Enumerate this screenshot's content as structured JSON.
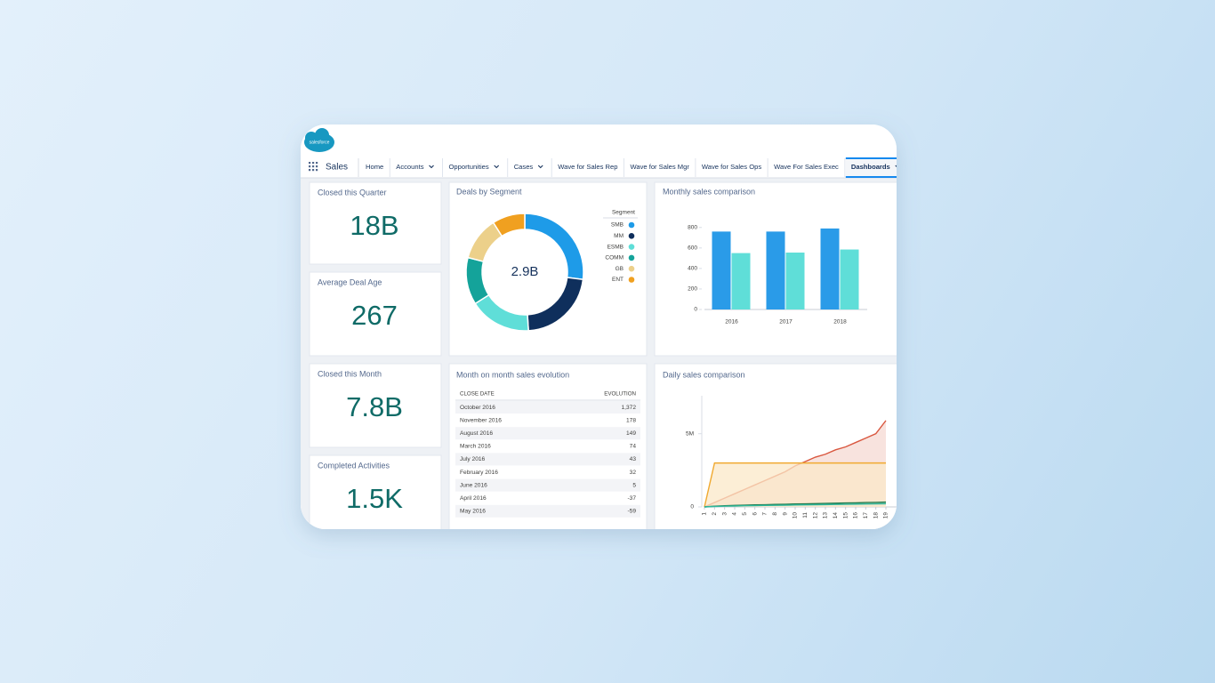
{
  "nav": {
    "logo": "salesforce",
    "app": "Sales",
    "tabs": [
      {
        "label": "Home"
      },
      {
        "label": "Accounts",
        "menu": true
      },
      {
        "label": "Opportunities",
        "menu": true
      },
      {
        "label": "Cases",
        "menu": true
      },
      {
        "label": "Wave for Sales Rep"
      },
      {
        "label": "Wave for Sales Mgr"
      },
      {
        "label": "Wave for Sales Ops"
      },
      {
        "label": "Wave For Sales Exec"
      },
      {
        "label": "Dashboards",
        "menu": true,
        "active": true
      }
    ]
  },
  "metrics": [
    {
      "label": "Closed this Quarter",
      "value": "18B"
    },
    {
      "label": "Average Deal Age",
      "value": "267"
    },
    {
      "label": "Closed this Month",
      "value": "7.8B"
    },
    {
      "label": "Completed Activities",
      "value": "1.5K"
    }
  ],
  "table": {
    "title": "Month on month sales evolution",
    "columns": [
      "CLOSE DATE",
      "EVOLUTION"
    ],
    "rows": [
      [
        "October 2016",
        "1,372"
      ],
      [
        "November 2016",
        "178"
      ],
      [
        "August 2016",
        "149"
      ],
      [
        "March 2016",
        "74"
      ],
      [
        "July 2016",
        "43"
      ],
      [
        "February 2016",
        "32"
      ],
      [
        "June 2016",
        "5"
      ],
      [
        "April 2016",
        "-37"
      ],
      [
        "May 2016",
        "-59"
      ]
    ]
  },
  "chart_data": [
    {
      "type": "donut",
      "title": "Deals by Segment",
      "center_label": "2.9B",
      "legend_title": "Segment",
      "categories": [
        "SMB",
        "MM",
        "ESMB",
        "COMM",
        "GB",
        "ENT"
      ],
      "values": [
        27,
        22,
        17,
        13,
        12,
        9
      ],
      "colors": [
        "#1e9be8",
        "#0f2f5c",
        "#5fded8",
        "#14a39a",
        "#ecd08a",
        "#f0a020"
      ]
    },
    {
      "type": "bar",
      "title": "Monthly sales comparison",
      "categories": [
        "2016",
        "2017",
        "2018"
      ],
      "series": [
        {
          "color": "#2a9be8",
          "values": [
            760,
            760,
            790
          ]
        },
        {
          "color": "#5fded8",
          "values": [
            550,
            555,
            585
          ]
        }
      ],
      "ylim": [
        0,
        850
      ],
      "yticks": [
        0,
        200,
        400,
        600,
        800
      ]
    },
    {
      "type": "area",
      "title": "Daily sales comparison",
      "x": [
        1,
        2,
        3,
        4,
        5,
        6,
        7,
        8,
        9,
        10,
        11,
        12,
        13,
        14,
        15,
        16,
        17,
        18,
        19
      ],
      "series": [
        {
          "color": "#d9573f",
          "fill_color": "#f6d9d3",
          "values": [
            0,
            0.3,
            0.6,
            0.9,
            1.2,
            1.5,
            1.8,
            2.1,
            2.4,
            2.8,
            3.1,
            3.4,
            3.6,
            3.9,
            4.1,
            4.4,
            4.7,
            5.0,
            5.9
          ]
        },
        {
          "color": "#f0a930",
          "fill_color": "#fbe8c8",
          "values": [
            0,
            3,
            3,
            3,
            3,
            3,
            3,
            3,
            3,
            3,
            3,
            3,
            3,
            3,
            3,
            3,
            3,
            3,
            3
          ]
        },
        {
          "color": "#1e7a4c",
          "values": [
            0,
            0.05,
            0.08,
            0.1,
            0.12,
            0.14,
            0.15,
            0.17,
            0.18,
            0.2,
            0.21,
            0.22,
            0.24,
            0.25,
            0.27,
            0.28,
            0.3,
            0.31,
            0.33
          ]
        },
        {
          "color": "#2fb79c",
          "values": [
            0,
            0.03,
            0.05,
            0.06,
            0.08,
            0.09,
            0.1,
            0.11,
            0.12,
            0.13,
            0.14,
            0.15,
            0.16,
            0.17,
            0.18,
            0.19,
            0.2,
            0.21,
            0.22
          ]
        }
      ],
      "xlim": [
        1,
        19
      ],
      "xticks": [
        1,
        2,
        3,
        4,
        5,
        6,
        7,
        8,
        9,
        10,
        11,
        12,
        13,
        14,
        15,
        16,
        17,
        18,
        19
      ],
      "ylim": [
        0,
        6.5
      ],
      "yticks": [
        0,
        {
          "value": 5,
          "label": "5M"
        }
      ]
    }
  ]
}
